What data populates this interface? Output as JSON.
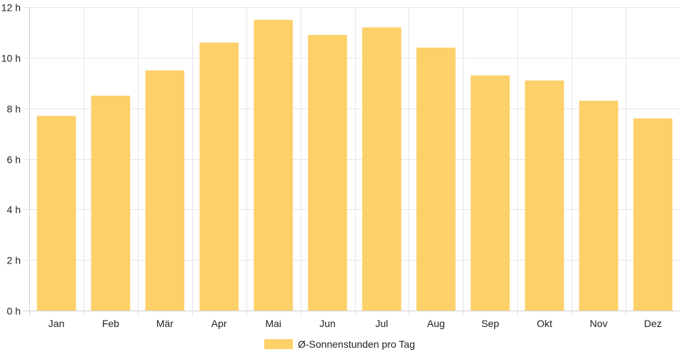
{
  "chart_data": {
    "type": "bar",
    "categories": [
      "Jan",
      "Feb",
      "Mär",
      "Apr",
      "Mai",
      "Jun",
      "Jul",
      "Aug",
      "Sep",
      "Okt",
      "Nov",
      "Dez"
    ],
    "series": [
      {
        "name": "Ø-Sonnenstunden pro Tag",
        "values": [
          7.7,
          8.5,
          9.5,
          10.6,
          11.5,
          10.9,
          11.2,
          10.4,
          9.3,
          9.1,
          8.3,
          7.6
        ],
        "color": "#fdd069"
      }
    ],
    "ylim": [
      0,
      12
    ],
    "yticks": [
      0,
      2,
      4,
      6,
      8,
      10,
      12
    ],
    "y_tick_suffix": " h",
    "grid": true,
    "legend_position": "bottom",
    "grid_color": "#e6e6e6",
    "axis_color": "#cfcfcf"
  }
}
